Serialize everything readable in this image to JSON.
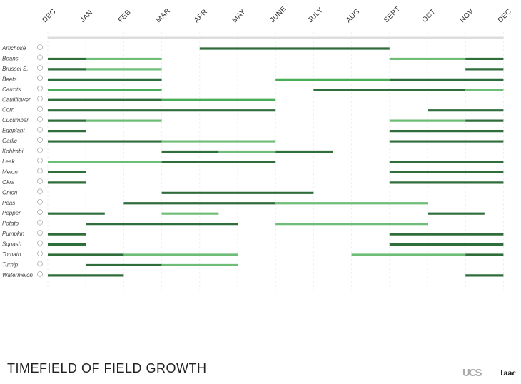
{
  "chart_data": {
    "type": "gantt",
    "title": "TIMEFIELD OF FIELD GROWTH",
    "months": [
      "DEC",
      "JAN",
      "FEB",
      "MAR",
      "APR",
      "MAY",
      "JUNE",
      "JULY",
      "AUG",
      "SEPT",
      "OCT",
      "NOV",
      "DEC"
    ],
    "colors": {
      "dark": "#2f6d3b",
      "mid": "#49ad57",
      "light": "#6dbd76",
      "axis": "#dddddd",
      "grid": "#eeeeee"
    },
    "rows": [
      {
        "name": "Artichoke",
        "icon": "artichoke-icon",
        "segments": [
          [
            4,
            9,
            "dark"
          ]
        ]
      },
      {
        "name": "Beans",
        "icon": "beans-icon",
        "segments": [
          [
            0,
            1,
            "dark"
          ],
          [
            1,
            3,
            "light"
          ],
          [
            9,
            11,
            "light"
          ],
          [
            11,
            12,
            "dark"
          ]
        ]
      },
      {
        "name": "Brussel S.",
        "icon": "brussel-sprouts-icon",
        "segments": [
          [
            0,
            1,
            "dark"
          ],
          [
            1,
            3,
            "light"
          ],
          [
            11,
            12,
            "dark"
          ]
        ]
      },
      {
        "name": "Beets",
        "icon": "beets-icon",
        "segments": [
          [
            0,
            3,
            "dark"
          ],
          [
            6,
            9,
            "mid"
          ],
          [
            9,
            12,
            "dark"
          ]
        ]
      },
      {
        "name": "Carrots",
        "icon": "carrot-icon",
        "segments": [
          [
            0,
            3,
            "mid"
          ],
          [
            7,
            11,
            "dark"
          ],
          [
            11,
            12,
            "light"
          ]
        ]
      },
      {
        "name": "Cauliflower",
        "icon": "cauliflower-icon",
        "segments": [
          [
            0,
            3,
            "dark"
          ],
          [
            3,
            6,
            "mid"
          ]
        ]
      },
      {
        "name": "Corn",
        "icon": "corn-icon",
        "segments": [
          [
            0,
            6,
            "dark"
          ],
          [
            10,
            12,
            "dark"
          ]
        ]
      },
      {
        "name": "Cucumber",
        "icon": "cucumber-icon",
        "segments": [
          [
            0,
            1,
            "dark"
          ],
          [
            1,
            3,
            "light"
          ],
          [
            9,
            11,
            "light"
          ],
          [
            11,
            12,
            "dark"
          ]
        ]
      },
      {
        "name": "Eggplant",
        "icon": "eggplant-icon",
        "segments": [
          [
            0,
            1,
            "dark"
          ],
          [
            9,
            12,
            "dark"
          ]
        ]
      },
      {
        "name": "Garlic",
        "icon": "garlic-icon",
        "segments": [
          [
            0,
            3,
            "dark"
          ],
          [
            3,
            6,
            "light"
          ],
          [
            9,
            12,
            "dark"
          ]
        ]
      },
      {
        "name": "Kohlrabi",
        "icon": "kohlrabi-icon",
        "segments": [
          [
            3,
            4.5,
            "dark"
          ],
          [
            4.5,
            6,
            "light"
          ],
          [
            6,
            7.5,
            "dark"
          ]
        ]
      },
      {
        "name": "Leek",
        "icon": "leek-icon",
        "segments": [
          [
            0,
            3,
            "light"
          ],
          [
            3,
            6,
            "dark"
          ],
          [
            9,
            12,
            "dark"
          ]
        ]
      },
      {
        "name": "Melon",
        "icon": "melon-icon",
        "segments": [
          [
            0,
            1,
            "dark"
          ],
          [
            9,
            12,
            "dark"
          ]
        ]
      },
      {
        "name": "Okra",
        "icon": "okra-icon",
        "segments": [
          [
            0,
            1,
            "dark"
          ],
          [
            9,
            12,
            "dark"
          ]
        ]
      },
      {
        "name": "Onion",
        "icon": "onion-icon",
        "segments": [
          [
            3,
            7,
            "dark"
          ]
        ]
      },
      {
        "name": "Peas",
        "icon": "peas-icon",
        "segments": [
          [
            2,
            6,
            "dark"
          ],
          [
            6,
            10,
            "light"
          ]
        ]
      },
      {
        "name": "Pepper",
        "icon": "pepper-icon",
        "segments": [
          [
            0,
            1.5,
            "dark"
          ],
          [
            3,
            4.5,
            "light"
          ],
          [
            10,
            11.5,
            "dark"
          ]
        ]
      },
      {
        "name": "Potato",
        "icon": "potato-icon",
        "segments": [
          [
            1,
            5,
            "dark"
          ],
          [
            6,
            10,
            "light"
          ]
        ]
      },
      {
        "name": "Pumpkin",
        "icon": "pumpkin-icon",
        "segments": [
          [
            0,
            1,
            "dark"
          ],
          [
            9,
            12,
            "dark"
          ]
        ]
      },
      {
        "name": "Squash",
        "icon": "squash-icon",
        "segments": [
          [
            0,
            1,
            "dark"
          ],
          [
            9,
            12,
            "dark"
          ]
        ]
      },
      {
        "name": "Tomato",
        "icon": "tomato-icon",
        "segments": [
          [
            0,
            2,
            "dark"
          ],
          [
            2,
            5,
            "light"
          ],
          [
            8,
            11,
            "light"
          ],
          [
            11,
            12,
            "dark"
          ]
        ]
      },
      {
        "name": "Turnip",
        "icon": "turnip-icon",
        "segments": [
          [
            1,
            3,
            "dark"
          ],
          [
            3,
            5,
            "light"
          ]
        ]
      },
      {
        "name": "Watermelon",
        "icon": "watermelon-icon",
        "segments": [
          [
            0,
            2,
            "dark"
          ],
          [
            11,
            12,
            "dark"
          ]
        ]
      }
    ]
  },
  "logos": {
    "left": "UCS",
    "right": "Iaac"
  }
}
